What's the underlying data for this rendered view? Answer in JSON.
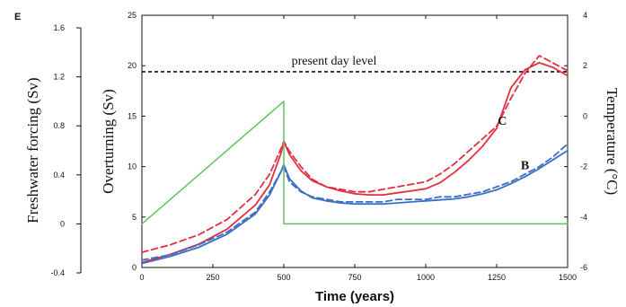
{
  "chart_data": {
    "type": "line",
    "panel_label": "E",
    "xlabel": "Time (years)",
    "xlim": [
      0,
      1500
    ],
    "xticks": [
      0,
      250,
      500,
      750,
      1000,
      1250,
      1500
    ],
    "axes": {
      "freshwater": {
        "label": "Freshwater forcing (Sv)",
        "lim": [
          -0.4,
          1.6
        ],
        "ticks": [
          "-0.4",
          "0",
          "0.4",
          "0.8",
          "1.2",
          "1.6"
        ]
      },
      "overturning": {
        "label": "Overturning (Sv)",
        "lim": [
          0,
          25
        ],
        "ticks": [
          "0",
          "5",
          "10",
          "15",
          "20",
          "25"
        ]
      },
      "temperature": {
        "label": "Temperature (°C)",
        "lim": [
          -6,
          4
        ],
        "ticks": [
          "-6",
          "-4",
          "-2",
          "0",
          "2",
          "4"
        ]
      }
    },
    "reference_line": {
      "label": "present day level",
      "value": 19.4,
      "axis": "overturning"
    },
    "series": [
      {
        "name": "C",
        "axis": "overturning",
        "color": "#e03040",
        "style": "solid",
        "x": [
          0,
          100,
          200,
          300,
          400,
          450,
          490,
          500,
          520,
          560,
          600,
          650,
          700,
          750,
          800,
          850,
          900,
          950,
          1000,
          1050,
          1100,
          1150,
          1200,
          1250,
          1300,
          1350,
          1400,
          1450,
          1500
        ],
        "y": [
          0.5,
          1.3,
          2.3,
          3.8,
          6.2,
          8.2,
          11.3,
          12.5,
          11.2,
          9.6,
          8.6,
          8.0,
          7.6,
          7.3,
          7.2,
          7.2,
          7.4,
          7.6,
          7.8,
          8.4,
          9.4,
          10.6,
          12.0,
          13.8,
          17.8,
          19.6,
          20.3,
          19.8,
          19.0
        ]
      },
      {
        "name": "",
        "axis": "temperature",
        "color": "#e03040",
        "style": "dashed",
        "x": [
          0,
          100,
          200,
          300,
          400,
          450,
          490,
          500,
          520,
          560,
          600,
          650,
          700,
          750,
          800,
          850,
          900,
          950,
          1000,
          1050,
          1100,
          1150,
          1200,
          1250,
          1300,
          1350,
          1400,
          1450,
          1500
        ],
        "y": [
          -5.4,
          -5.1,
          -4.7,
          -4.1,
          -3.1,
          -2.3,
          -1.3,
          -1.0,
          -1.4,
          -2.0,
          -2.5,
          -2.8,
          -2.9,
          -3.0,
          -3.0,
          -2.9,
          -2.8,
          -2.7,
          -2.6,
          -2.3,
          -1.9,
          -1.4,
          -0.9,
          -0.4,
          0.7,
          1.7,
          2.4,
          2.1,
          1.8
        ]
      },
      {
        "name": "B",
        "axis": "overturning",
        "color": "#3a6fc4",
        "style": "solid",
        "x": [
          0,
          100,
          200,
          300,
          400,
          450,
          490,
          500,
          520,
          560,
          600,
          650,
          700,
          750,
          800,
          850,
          900,
          950,
          1000,
          1050,
          1100,
          1150,
          1200,
          1250,
          1300,
          1350,
          1400,
          1450,
          1500
        ],
        "y": [
          0.4,
          1.1,
          2.0,
          3.3,
          5.3,
          7.2,
          9.5,
          10.2,
          8.8,
          7.6,
          6.9,
          6.6,
          6.4,
          6.3,
          6.3,
          6.3,
          6.4,
          6.5,
          6.6,
          6.7,
          6.8,
          7.0,
          7.3,
          7.7,
          8.3,
          9.0,
          9.8,
          10.7,
          11.6
        ]
      },
      {
        "name": "",
        "axis": "temperature",
        "color": "#3a6fc4",
        "style": "dashed",
        "x": [
          0,
          100,
          200,
          300,
          400,
          450,
          490,
          500,
          520,
          560,
          600,
          650,
          700,
          750,
          800,
          850,
          900,
          950,
          1000,
          1050,
          1100,
          1150,
          1200,
          1250,
          1300,
          1350,
          1400,
          1450,
          1500
        ],
        "y": [
          -5.7,
          -5.5,
          -5.1,
          -4.6,
          -3.8,
          -3.0,
          -2.2,
          -2.0,
          -2.6,
          -3.0,
          -3.2,
          -3.3,
          -3.4,
          -3.4,
          -3.4,
          -3.4,
          -3.3,
          -3.3,
          -3.3,
          -3.2,
          -3.2,
          -3.1,
          -3.0,
          -2.8,
          -2.6,
          -2.3,
          -2.0,
          -1.6,
          -1.1
        ]
      },
      {
        "name": "",
        "axis": "freshwater",
        "color": "#5ec25e",
        "style": "solid",
        "x": [
          0,
          500,
          500,
          1500
        ],
        "y": [
          0.0,
          1.0,
          0.0,
          0.0
        ]
      }
    ]
  }
}
